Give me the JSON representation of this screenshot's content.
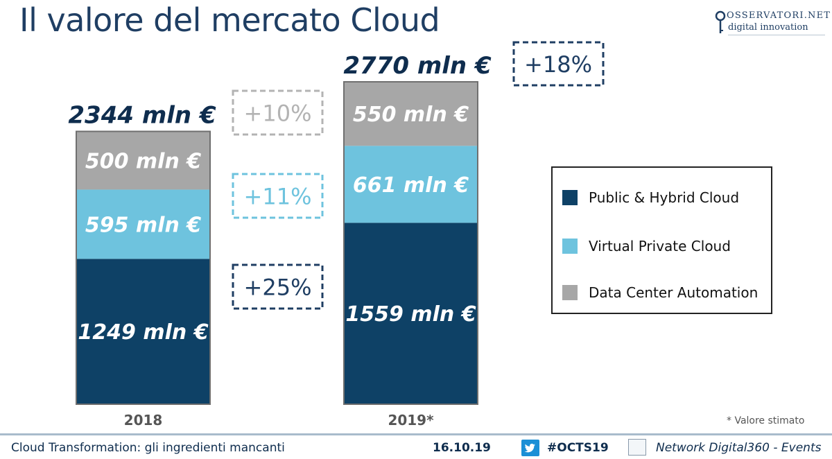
{
  "slide": {
    "title": "Il valore del mercato Cloud",
    "logo": {
      "line1": "OSSERVATORI.NET",
      "line2": "digital innovation"
    },
    "note": "* Valore stimato"
  },
  "footer": {
    "left_text": "Cloud Transformation: gli ingredienti mancanti",
    "date": "16.10.19",
    "hashtag": "#OCTS19",
    "network": "Network Digital360 - Events",
    "icons": [
      "twitter-icon",
      "network-digital360-icon"
    ]
  },
  "chart_data": {
    "type": "bar",
    "stacked": true,
    "categories": [
      "2018",
      "2019*"
    ],
    "totals": [
      {
        "value": 2344,
        "label": "2344 mln €"
      },
      {
        "value": 2770,
        "label": "2770 mln €"
      }
    ],
    "series": [
      {
        "name": "Public & Hybrid Cloud",
        "color": "#0e4166",
        "values": [
          1249,
          1559
        ],
        "labels": [
          "1249 mln €",
          "1559 mln €"
        ]
      },
      {
        "name": "Virtual Private Cloud",
        "color": "#6ec3de",
        "values": [
          595,
          661
        ],
        "labels": [
          "595 mln €",
          "661 mln €"
        ]
      },
      {
        "name": "Data Center Automation",
        "color": "#a7a7a7",
        "values": [
          500,
          550
        ],
        "labels": [
          "500 mln €",
          "550 mln €"
        ]
      }
    ],
    "growth": [
      {
        "series": "Data Center Automation",
        "label": "+10%",
        "color": "#b3b3b3"
      },
      {
        "series": "Virtual Private Cloud",
        "label": "+11%",
        "color": "#6ec3de"
      },
      {
        "series": "Public & Hybrid Cloud",
        "label": "+25%",
        "color": "#1f3e63"
      }
    ],
    "total_growth": {
      "label": "+18%",
      "color": "#1f3e63"
    },
    "legend_position": "right",
    "grid": false
  }
}
